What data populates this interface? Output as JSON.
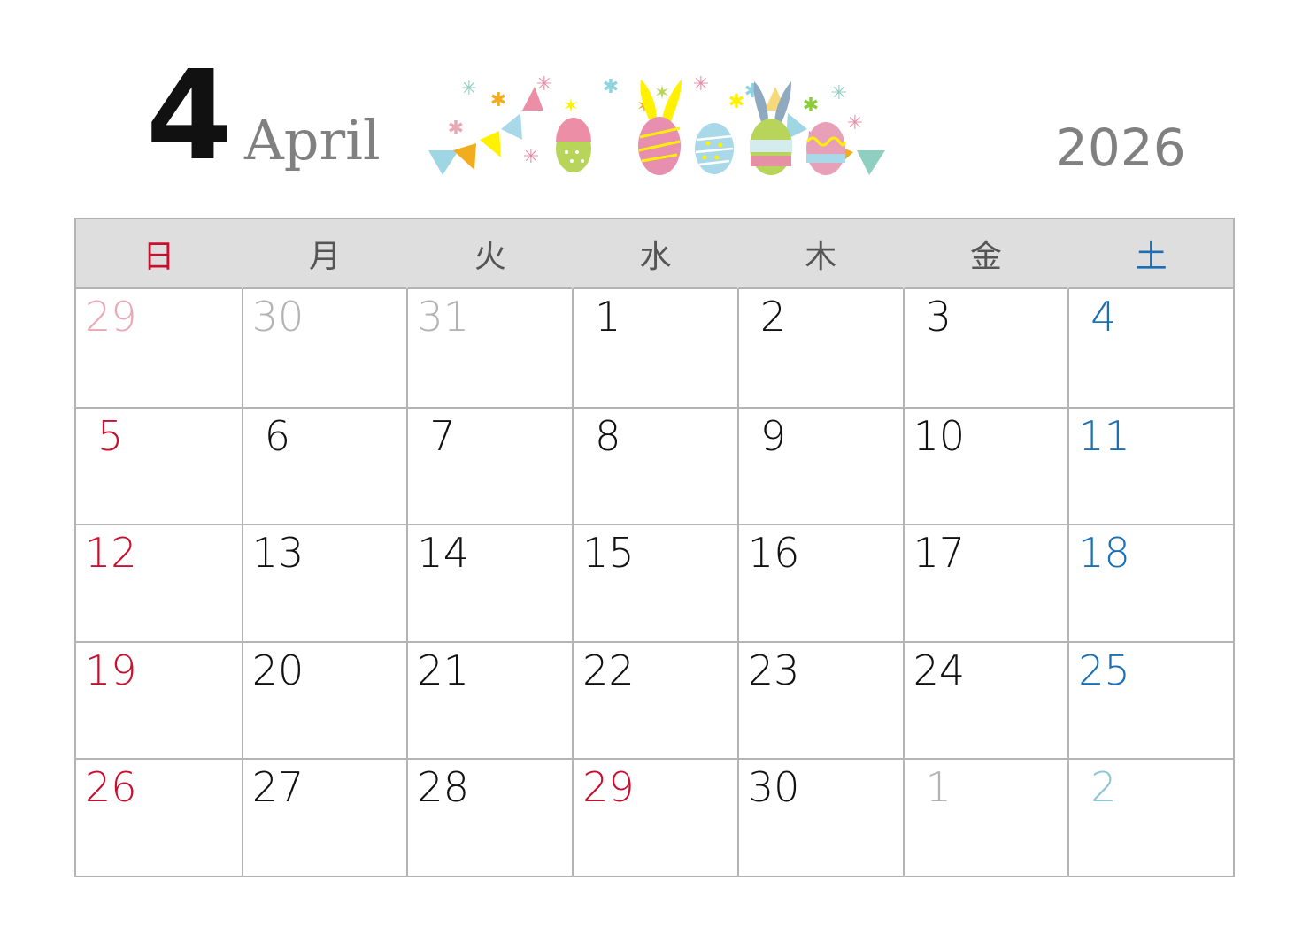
{
  "header": {
    "month_number": "4",
    "month_name": "April",
    "year": "2026"
  },
  "colors": {
    "sunday": "#c8102e",
    "saturday": "#1a6fb5",
    "weekday": "#111111",
    "prev_month_sunday": "#e8a9b5",
    "other_month": "#b3b3b3",
    "next_month_saturday": "#8fc3d6",
    "header_bg": "#dedede"
  },
  "weekdays": [
    {
      "label": "日",
      "type": "sunday"
    },
    {
      "label": "月",
      "type": "weekday"
    },
    {
      "label": "火",
      "type": "weekday"
    },
    {
      "label": "水",
      "type": "weekday"
    },
    {
      "label": "木",
      "type": "weekday"
    },
    {
      "label": "金",
      "type": "weekday"
    },
    {
      "label": "土",
      "type": "saturday"
    }
  ],
  "days": [
    {
      "day": "29",
      "type": "prev_month_sunday"
    },
    {
      "day": "30",
      "type": "other_month"
    },
    {
      "day": "31",
      "type": "other_month"
    },
    {
      "day": "1",
      "type": "weekday"
    },
    {
      "day": "2",
      "type": "weekday"
    },
    {
      "day": "3",
      "type": "weekday"
    },
    {
      "day": "4",
      "type": "saturday"
    },
    {
      "day": "5",
      "type": "sunday"
    },
    {
      "day": "6",
      "type": "weekday"
    },
    {
      "day": "7",
      "type": "weekday"
    },
    {
      "day": "8",
      "type": "weekday"
    },
    {
      "day": "9",
      "type": "weekday"
    },
    {
      "day": "10",
      "type": "weekday"
    },
    {
      "day": "11",
      "type": "saturday"
    },
    {
      "day": "12",
      "type": "sunday"
    },
    {
      "day": "13",
      "type": "weekday"
    },
    {
      "day": "14",
      "type": "weekday"
    },
    {
      "day": "15",
      "type": "weekday"
    },
    {
      "day": "16",
      "type": "weekday"
    },
    {
      "day": "17",
      "type": "weekday"
    },
    {
      "day": "18",
      "type": "saturday"
    },
    {
      "day": "19",
      "type": "sunday"
    },
    {
      "day": "20",
      "type": "weekday"
    },
    {
      "day": "21",
      "type": "weekday"
    },
    {
      "day": "22",
      "type": "weekday"
    },
    {
      "day": "23",
      "type": "weekday"
    },
    {
      "day": "24",
      "type": "weekday"
    },
    {
      "day": "25",
      "type": "saturday"
    },
    {
      "day": "26",
      "type": "sunday"
    },
    {
      "day": "27",
      "type": "weekday"
    },
    {
      "day": "28",
      "type": "weekday"
    },
    {
      "day": "29",
      "type": "sunday"
    },
    {
      "day": "30",
      "type": "weekday"
    },
    {
      "day": "1",
      "type": "other_month"
    },
    {
      "day": "2",
      "type": "next_month_saturday"
    }
  ],
  "decoration": {
    "icon": "easter-eggs-bunting-illustration"
  }
}
